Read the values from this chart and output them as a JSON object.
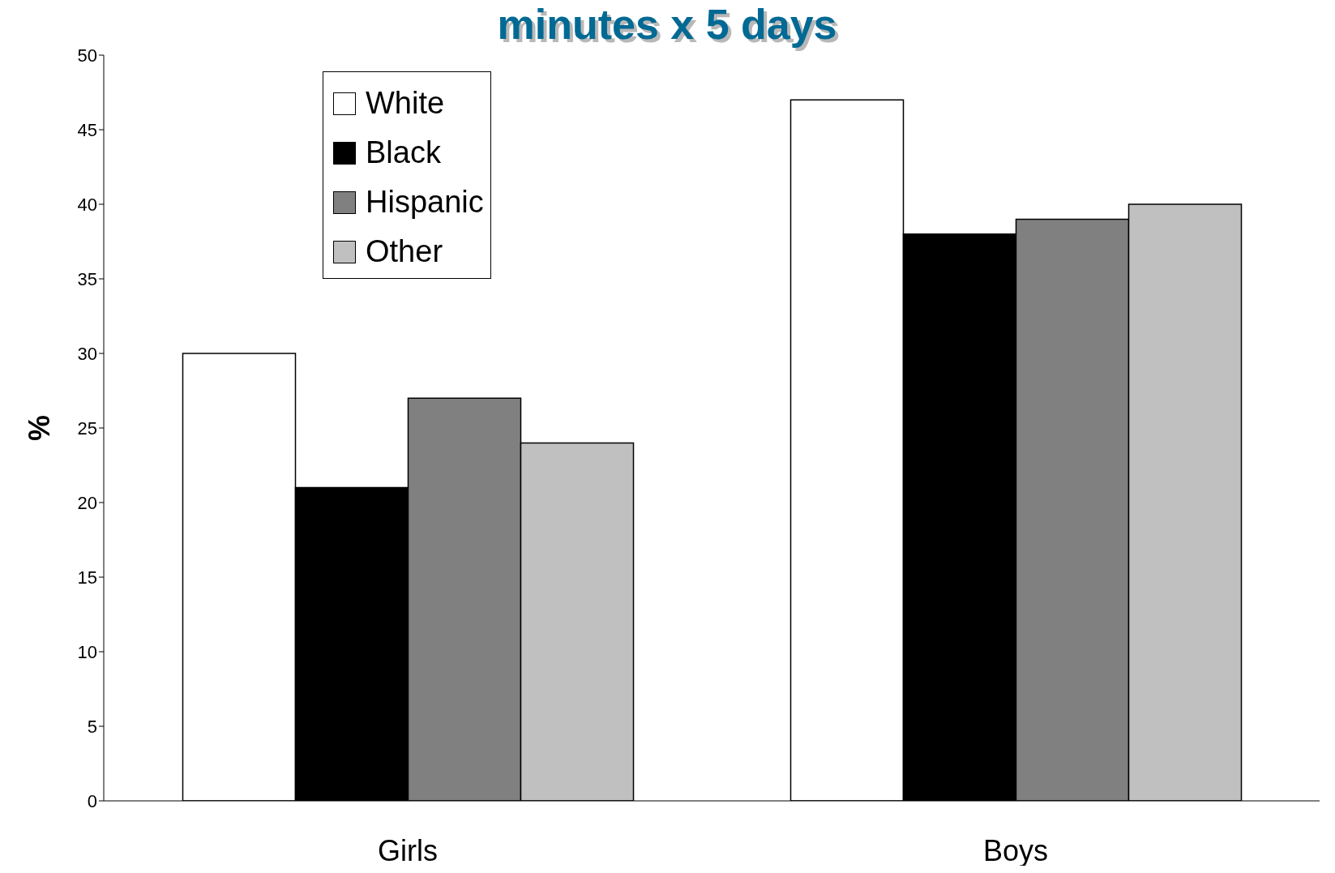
{
  "chart_data": {
    "type": "bar",
    "title": "minutes x 5 days",
    "ylabel": "%",
    "categories": [
      "Girls",
      "Boys"
    ],
    "series": [
      {
        "name": "White",
        "color": "#ffffff",
        "values": [
          30,
          47
        ]
      },
      {
        "name": "Black",
        "color": "#000000",
        "values": [
          21,
          38
        ]
      },
      {
        "name": "Hispanic",
        "color": "#808080",
        "values": [
          27,
          39
        ]
      },
      {
        "name": "Other",
        "color": "#c0c0c0",
        "values": [
          24,
          40
        ]
      }
    ],
    "ylim": [
      0,
      50
    ],
    "yticks": [
      0,
      5,
      10,
      15,
      20,
      25,
      30,
      35,
      40,
      45,
      50
    ],
    "grid": false,
    "legend": "top left"
  }
}
